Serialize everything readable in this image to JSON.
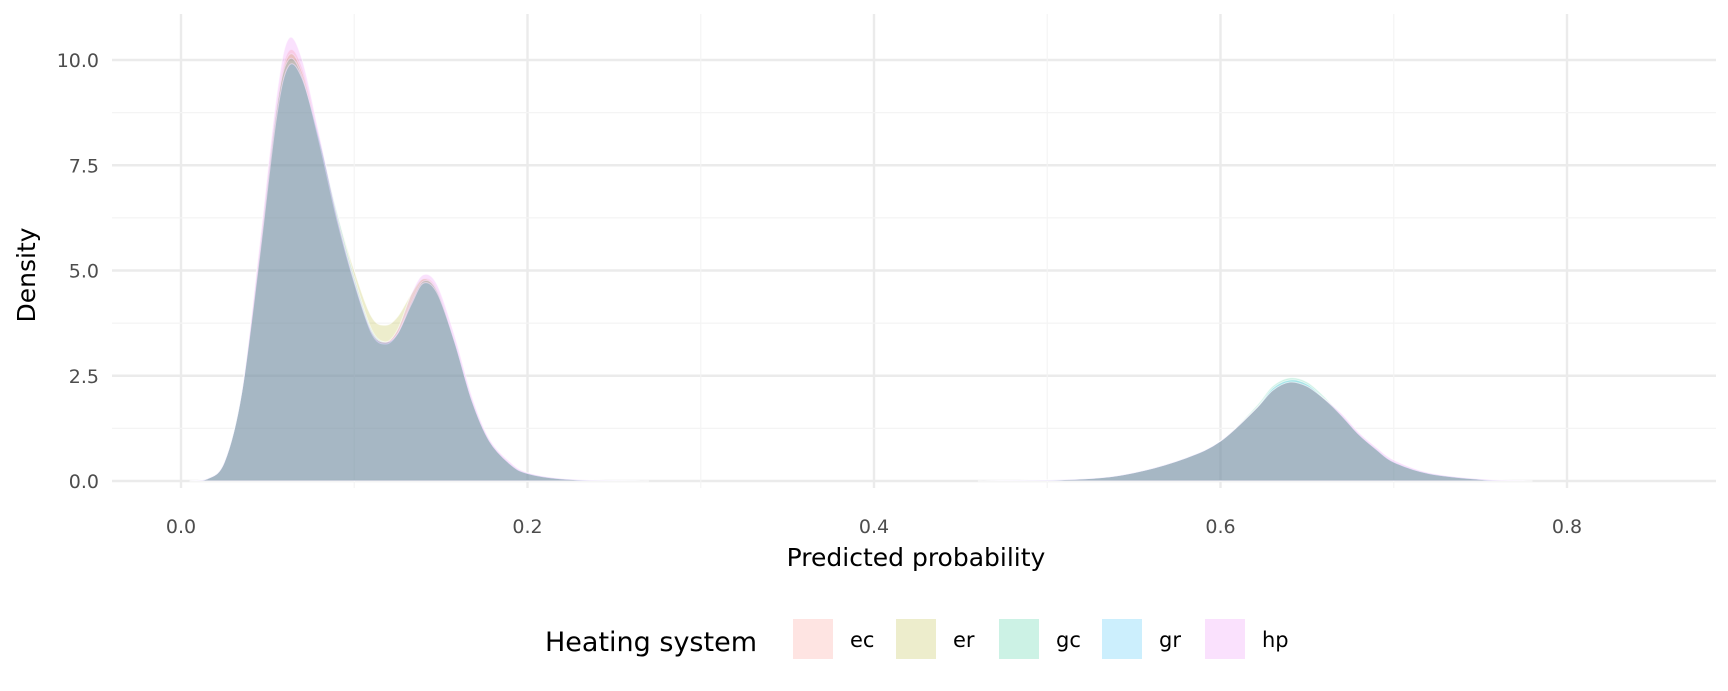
{
  "chart_data": {
    "type": "area",
    "subtype": "density",
    "title": "",
    "xlabel": "Predicted probability",
    "ylabel": "Density",
    "xlim": [
      -0.04,
      0.87
    ],
    "ylim": [
      0,
      10.85
    ],
    "x_ticks": [
      0.0,
      0.2,
      0.4,
      0.6,
      0.8
    ],
    "x_tick_labels": [
      "0.0",
      "0.2",
      "0.4",
      "0.6",
      "0.8"
    ],
    "y_ticks": [
      0.0,
      2.5,
      5.0,
      7.5,
      10.0
    ],
    "y_tick_labels": [
      "0.0",
      "2.5",
      "5.0",
      "7.5",
      "10.0"
    ],
    "grid": true,
    "legend": {
      "title": "Heating system",
      "position": "bottom"
    },
    "series": [
      {
        "name": "ec",
        "color": "#F8766D",
        "points": [
          [
            0.005,
            0
          ],
          [
            0.015,
            0.05
          ],
          [
            0.025,
            0.45
          ],
          [
            0.035,
            2.1
          ],
          [
            0.045,
            5.4
          ],
          [
            0.055,
            8.9
          ],
          [
            0.062,
            10.2
          ],
          [
            0.07,
            9.8
          ],
          [
            0.08,
            8.1
          ],
          [
            0.09,
            6.3
          ],
          [
            0.1,
            4.8
          ],
          [
            0.11,
            3.55
          ],
          [
            0.118,
            3.3
          ],
          [
            0.125,
            3.55
          ],
          [
            0.133,
            4.3
          ],
          [
            0.14,
            4.8
          ],
          [
            0.148,
            4.55
          ],
          [
            0.158,
            3.3
          ],
          [
            0.168,
            1.9
          ],
          [
            0.178,
            0.95
          ],
          [
            0.19,
            0.4
          ],
          [
            0.2,
            0.18
          ],
          [
            0.22,
            0.05
          ],
          [
            0.25,
            0.01
          ],
          [
            0.27,
            0
          ]
        ],
        "points2": [
          [
            0.46,
            0
          ],
          [
            0.52,
            0.05
          ],
          [
            0.55,
            0.2
          ],
          [
            0.58,
            0.55
          ],
          [
            0.6,
            0.95
          ],
          [
            0.62,
            1.7
          ],
          [
            0.63,
            2.15
          ],
          [
            0.64,
            2.35
          ],
          [
            0.65,
            2.25
          ],
          [
            0.66,
            1.95
          ],
          [
            0.67,
            1.55
          ],
          [
            0.68,
            1.1
          ],
          [
            0.69,
            0.75
          ],
          [
            0.7,
            0.45
          ],
          [
            0.72,
            0.18
          ],
          [
            0.75,
            0.04
          ],
          [
            0.78,
            0
          ]
        ]
      },
      {
        "name": "er",
        "color": "#A3A500",
        "points": [
          [
            0.005,
            0
          ],
          [
            0.015,
            0.05
          ],
          [
            0.025,
            0.45
          ],
          [
            0.035,
            2.1
          ],
          [
            0.045,
            5.3
          ],
          [
            0.055,
            8.8
          ],
          [
            0.062,
            10.1
          ],
          [
            0.07,
            9.7
          ],
          [
            0.08,
            8.1
          ],
          [
            0.09,
            6.4
          ],
          [
            0.1,
            5.0
          ],
          [
            0.11,
            3.9
          ],
          [
            0.118,
            3.7
          ],
          [
            0.125,
            3.9
          ],
          [
            0.133,
            4.45
          ],
          [
            0.14,
            4.8
          ],
          [
            0.148,
            4.5
          ],
          [
            0.158,
            3.3
          ],
          [
            0.168,
            1.9
          ],
          [
            0.178,
            0.95
          ],
          [
            0.19,
            0.4
          ],
          [
            0.2,
            0.18
          ],
          [
            0.22,
            0.05
          ],
          [
            0.25,
            0.01
          ],
          [
            0.27,
            0
          ]
        ],
        "points2": [
          [
            0.46,
            0
          ],
          [
            0.52,
            0.05
          ],
          [
            0.55,
            0.2
          ],
          [
            0.58,
            0.55
          ],
          [
            0.6,
            0.95
          ],
          [
            0.62,
            1.7
          ],
          [
            0.63,
            2.15
          ],
          [
            0.64,
            2.35
          ],
          [
            0.65,
            2.25
          ],
          [
            0.66,
            1.95
          ],
          [
            0.67,
            1.55
          ],
          [
            0.68,
            1.1
          ],
          [
            0.69,
            0.75
          ],
          [
            0.7,
            0.45
          ],
          [
            0.72,
            0.18
          ],
          [
            0.75,
            0.04
          ],
          [
            0.78,
            0
          ]
        ]
      },
      {
        "name": "gc",
        "color": "#00BF7D",
        "points": [
          [
            0.005,
            0
          ],
          [
            0.015,
            0.05
          ],
          [
            0.025,
            0.45
          ],
          [
            0.035,
            2.1
          ],
          [
            0.045,
            5.3
          ],
          [
            0.055,
            8.8
          ],
          [
            0.062,
            10.0
          ],
          [
            0.07,
            9.6
          ],
          [
            0.08,
            8.0
          ],
          [
            0.09,
            6.2
          ],
          [
            0.1,
            4.7
          ],
          [
            0.11,
            3.5
          ],
          [
            0.118,
            3.25
          ],
          [
            0.125,
            3.5
          ],
          [
            0.133,
            4.25
          ],
          [
            0.14,
            4.75
          ],
          [
            0.148,
            4.5
          ],
          [
            0.158,
            3.3
          ],
          [
            0.168,
            1.9
          ],
          [
            0.178,
            0.95
          ],
          [
            0.19,
            0.4
          ],
          [
            0.2,
            0.18
          ],
          [
            0.22,
            0.05
          ],
          [
            0.25,
            0.01
          ],
          [
            0.27,
            0
          ]
        ],
        "points2": [
          [
            0.46,
            0
          ],
          [
            0.52,
            0.05
          ],
          [
            0.55,
            0.2
          ],
          [
            0.58,
            0.55
          ],
          [
            0.6,
            0.95
          ],
          [
            0.62,
            1.75
          ],
          [
            0.63,
            2.25
          ],
          [
            0.64,
            2.45
          ],
          [
            0.65,
            2.35
          ],
          [
            0.66,
            2.0
          ],
          [
            0.67,
            1.55
          ],
          [
            0.68,
            1.1
          ],
          [
            0.69,
            0.75
          ],
          [
            0.7,
            0.45
          ],
          [
            0.72,
            0.18
          ],
          [
            0.75,
            0.04
          ],
          [
            0.78,
            0
          ]
        ]
      },
      {
        "name": "gr",
        "color": "#00B0F6",
        "points": [
          [
            0.005,
            0
          ],
          [
            0.015,
            0.05
          ],
          [
            0.025,
            0.45
          ],
          [
            0.035,
            2.1
          ],
          [
            0.045,
            5.2
          ],
          [
            0.055,
            8.6
          ],
          [
            0.062,
            9.85
          ],
          [
            0.07,
            9.55
          ],
          [
            0.08,
            8.1
          ],
          [
            0.09,
            6.4
          ],
          [
            0.1,
            4.85
          ],
          [
            0.11,
            3.6
          ],
          [
            0.118,
            3.3
          ],
          [
            0.125,
            3.5
          ],
          [
            0.133,
            4.2
          ],
          [
            0.14,
            4.7
          ],
          [
            0.148,
            4.45
          ],
          [
            0.158,
            3.3
          ],
          [
            0.168,
            1.9
          ],
          [
            0.178,
            0.95
          ],
          [
            0.19,
            0.4
          ],
          [
            0.2,
            0.18
          ],
          [
            0.22,
            0.05
          ],
          [
            0.25,
            0.01
          ],
          [
            0.27,
            0
          ]
        ],
        "points2": [
          [
            0.46,
            0
          ],
          [
            0.52,
            0.05
          ],
          [
            0.55,
            0.2
          ],
          [
            0.58,
            0.55
          ],
          [
            0.6,
            0.95
          ],
          [
            0.62,
            1.7
          ],
          [
            0.63,
            2.2
          ],
          [
            0.64,
            2.4
          ],
          [
            0.65,
            2.3
          ],
          [
            0.66,
            1.95
          ],
          [
            0.67,
            1.55
          ],
          [
            0.68,
            1.1
          ],
          [
            0.69,
            0.75
          ],
          [
            0.7,
            0.45
          ],
          [
            0.72,
            0.18
          ],
          [
            0.75,
            0.04
          ],
          [
            0.78,
            0
          ]
        ]
      },
      {
        "name": "hp",
        "color": "#E76BF3",
        "points": [
          [
            0.005,
            0
          ],
          [
            0.015,
            0.05
          ],
          [
            0.025,
            0.45
          ],
          [
            0.035,
            2.1
          ],
          [
            0.045,
            5.5
          ],
          [
            0.055,
            9.1
          ],
          [
            0.062,
            10.5
          ],
          [
            0.07,
            10.0
          ],
          [
            0.08,
            8.2
          ],
          [
            0.09,
            6.3
          ],
          [
            0.1,
            4.75
          ],
          [
            0.11,
            3.55
          ],
          [
            0.118,
            3.3
          ],
          [
            0.125,
            3.6
          ],
          [
            0.133,
            4.45
          ],
          [
            0.14,
            4.9
          ],
          [
            0.148,
            4.65
          ],
          [
            0.158,
            3.45
          ],
          [
            0.168,
            2.0
          ],
          [
            0.178,
            1.0
          ],
          [
            0.19,
            0.45
          ],
          [
            0.2,
            0.2
          ],
          [
            0.22,
            0.06
          ],
          [
            0.25,
            0.01
          ],
          [
            0.27,
            0
          ]
        ],
        "points2": [
          [
            0.46,
            0
          ],
          [
            0.52,
            0.05
          ],
          [
            0.55,
            0.2
          ],
          [
            0.58,
            0.55
          ],
          [
            0.6,
            0.95
          ],
          [
            0.62,
            1.7
          ],
          [
            0.63,
            2.15
          ],
          [
            0.64,
            2.35
          ],
          [
            0.65,
            2.25
          ],
          [
            0.66,
            1.95
          ],
          [
            0.67,
            1.6
          ],
          [
            0.68,
            1.15
          ],
          [
            0.69,
            0.8
          ],
          [
            0.7,
            0.5
          ],
          [
            0.72,
            0.2
          ],
          [
            0.75,
            0.05
          ],
          [
            0.78,
            0
          ]
        ]
      }
    ]
  }
}
